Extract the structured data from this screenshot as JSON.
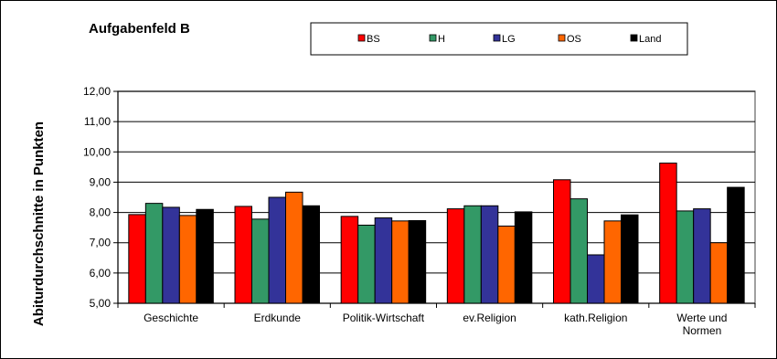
{
  "chart_data": {
    "type": "bar",
    "title": "Aufgabenfeld B",
    "ylabel": "Abiturdurchschnitte in Punkten",
    "xlabel": "",
    "ylim": [
      5,
      12
    ],
    "yticks": [
      "5,00",
      "6,00",
      "7,00",
      "8,00",
      "9,00",
      "10,00",
      "11,00",
      "12,00"
    ],
    "grid": true,
    "legend_position": "top",
    "categories": [
      "Geschichte",
      "Erdkunde",
      "Politik-Wirtschaft",
      "ev.Religion",
      "kath.Religion",
      "Werte und Normen"
    ],
    "series": [
      {
        "name": "BS",
        "color": "#ff0000",
        "values": [
          7.93,
          8.2,
          7.87,
          8.12,
          9.08,
          9.63
        ]
      },
      {
        "name": "H",
        "color": "#339966",
        "values": [
          8.3,
          7.78,
          7.58,
          8.22,
          8.45,
          8.05
        ]
      },
      {
        "name": "LG",
        "color": "#333399",
        "values": [
          8.17,
          8.5,
          7.82,
          8.22,
          6.6,
          8.12
        ]
      },
      {
        "name": "OS",
        "color": "#ff6600",
        "values": [
          7.9,
          8.67,
          7.72,
          7.55,
          7.72,
          7.0
        ]
      },
      {
        "name": "Land",
        "color": "#000000",
        "values": [
          8.1,
          8.22,
          7.73,
          8.02,
          7.92,
          8.83
        ]
      }
    ]
  }
}
